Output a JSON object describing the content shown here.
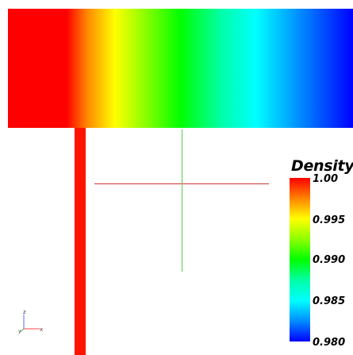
{
  "legend": {
    "title": "Density",
    "ticks": [
      {
        "label": "1.00"
      },
      {
        "label": "0.995"
      },
      {
        "label": "0.990"
      },
      {
        "label": "0.985"
      },
      {
        "label": "0.980"
      }
    ]
  },
  "orientation": {
    "z_label": "z",
    "y_label": "y",
    "x_label": "x"
  },
  "colors": {
    "colormap_high": "#ff0000",
    "colormap_mid": "#00ff00",
    "colormap_low": "#0000ff",
    "probe_horizontal": "#cc3333",
    "probe_vertical": "#55cc55"
  },
  "icons": {
    "orientation_axes": "xyz-axes-icon"
  }
}
